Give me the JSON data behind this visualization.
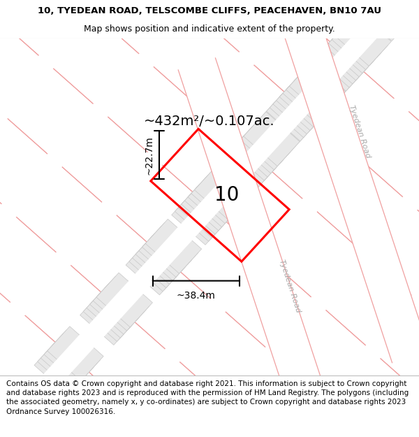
{
  "title_line1": "10, TYEDEAN ROAD, TELSCOMBE CLIFFS, PEACEHAVEN, BN10 7AU",
  "title_line2": "Map shows position and indicative extent of the property.",
  "footer_text": "Contains OS data © Crown copyright and database right 2021. This information is subject to Crown copyright and database rights 2023 and is reproduced with the permission of HM Land Registry. The polygons (including the associated geometry, namely x, y co-ordinates) are subject to Crown copyright and database rights 2023 Ordnance Survey 100026316.",
  "map_bg": "#ffffff",
  "plot_color": "#ff0000",
  "block_fill": "#e8e8e8",
  "block_edge": "#c8c8c8",
  "road_line_color": "#f0a0a0",
  "large_plot_fill": "#eeeeee",
  "large_plot_edge": "#c8c8c8",
  "area_text": "~432m²/~0.107ac.",
  "width_text": "~38.4m",
  "height_text": "~22.7m",
  "house_number": "10",
  "road_label": "Tyedean Road",
  "title_fontsize": 9.5,
  "subtitle_fontsize": 9,
  "area_fontsize": 14,
  "dim_fontsize": 10,
  "number_fontsize": 20,
  "road_label_fontsize": 8,
  "footer_fontsize": 7.5
}
